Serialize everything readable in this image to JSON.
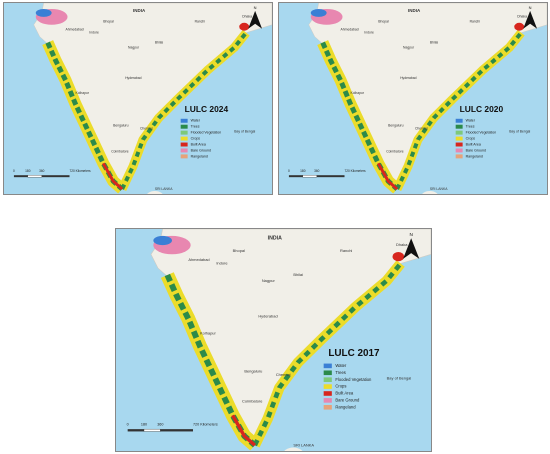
{
  "panels": [
    {
      "title": "LULC 2024"
    },
    {
      "title": "LULC 2020"
    },
    {
      "title": "LULC 2017"
    }
  ],
  "legend": [
    {
      "label": "Water",
      "color": "#3a7fd5"
    },
    {
      "label": "Trees",
      "color": "#2b8a4a"
    },
    {
      "label": "Flooded Vegetation",
      "color": "#7ec97a"
    },
    {
      "label": "Crops",
      "color": "#ecdc2a"
    },
    {
      "label": "Built Area",
      "color": "#d7261e"
    },
    {
      "label": "Bare Ground",
      "color": "#e887b0"
    },
    {
      "label": "Rangeland",
      "color": "#e6a27a"
    }
  ],
  "places": [
    "INDIA",
    "Ahmedabad",
    "Bhopal",
    "Indore",
    "Nagpur",
    "Bhilai",
    "Ranchi",
    "Dhaka",
    "Hyderabad",
    "Kolhapur",
    "Bengaluru",
    "Chennai",
    "Coimbatore",
    "SRI LANKA",
    "Bay of Bengal"
  ],
  "scale": [
    "0",
    "180",
    "360",
    "720 Kilometers"
  ],
  "north": "N"
}
